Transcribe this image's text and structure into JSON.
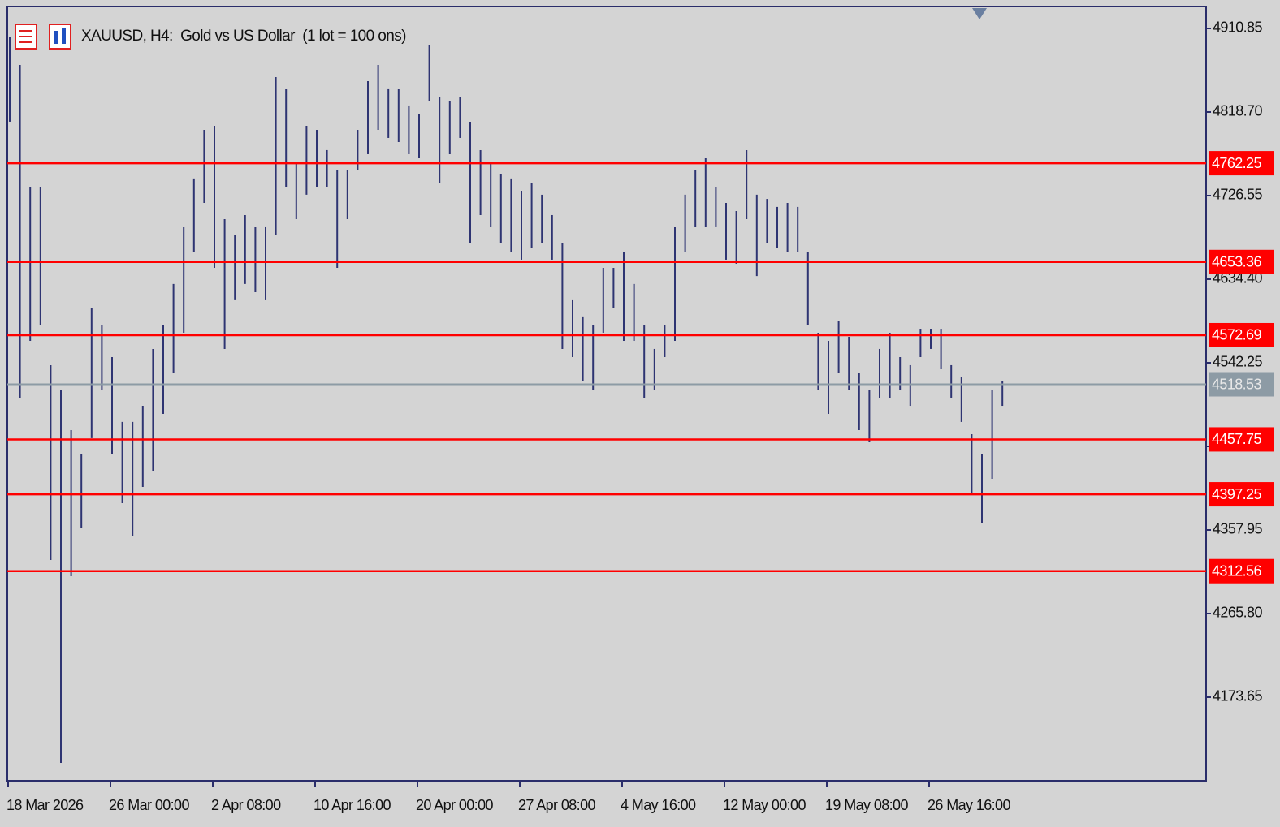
{
  "chart_data": {
    "type": "ohlc",
    "title": "XAUUSD, H4:  Gold vs US Dollar  (1 lot = 100 ons)",
    "categories": [
      "18 Mar 2026",
      null,
      null,
      null,
      null,
      null,
      null,
      null,
      null,
      null,
      "26 Mar 00:00",
      null,
      null,
      null,
      null,
      null,
      null,
      null,
      null,
      null,
      "2 Apr 08:00",
      null,
      null,
      null,
      null,
      null,
      null,
      null,
      null,
      null,
      "10 Apr 16:00",
      null,
      null,
      null,
      null,
      null,
      null,
      null,
      null,
      null,
      "20 Apr 00:00",
      null,
      null,
      null,
      null,
      null,
      null,
      null,
      null,
      null,
      "27 Apr 08:00",
      null,
      null,
      null,
      null,
      null,
      null,
      null,
      null,
      null,
      "4 May 16:00",
      null,
      null,
      null,
      null,
      null,
      null,
      null,
      null,
      null,
      "12 May 00:00",
      null,
      null,
      null,
      null,
      null,
      null,
      null,
      null,
      null,
      "19 May 08:00",
      null,
      null,
      null,
      null,
      null,
      null,
      null,
      null,
      null,
      "26 May 16:00",
      null,
      null,
      null,
      null,
      null,
      null,
      null
    ],
    "high": [
      4901.9,
      4870.6,
      4736.4,
      4736.4,
      4539.6,
      4512.7,
      4468.0,
      4441.2,
      4602.2,
      4584.3,
      4548.5,
      4477.0,
      4477.0,
      4494.8,
      4557.5,
      4584.3,
      4629.1,
      4691.7,
      4745.4,
      4799.0,
      4803.5,
      4700.6,
      4682.7,
      4705.1,
      4691.7,
      4691.7,
      4857.2,
      4843.8,
      4763.3,
      4803.5,
      4799.0,
      4776.7,
      4754.3,
      4754.3,
      4799.0,
      4852.7,
      4870.6,
      4843.8,
      4843.8,
      4825.9,
      4816.9,
      4893.0,
      4834.8,
      4830.4,
      4834.8,
      4808.0,
      4776.7,
      4763.3,
      4749.8,
      4745.4,
      4731.9,
      4740.9,
      4727.5,
      4705.1,
      4673.8,
      4611.2,
      4593.3,
      4584.3,
      4646.9,
      4646.9,
      4664.8,
      4629.1,
      4584.3,
      4557.5,
      4584.3,
      4691.7,
      4727.5,
      4754.3,
      4767.7,
      4736.4,
      4718.5,
      4709.6,
      4776.7,
      4727.5,
      4722.9,
      4714.1,
      4718.5,
      4714.1,
      4664.8,
      4575.4,
      4566.4,
      4588.8,
      4570.9,
      4530.6,
      4512.7,
      4557.5,
      4575.4,
      4548.5,
      4539.6,
      4579.8,
      4579.8,
      4579.8,
      4539.6,
      4526.2,
      4463.5,
      4441.2,
      4512.7,
      4521.7
    ],
    "low": [
      4808.0,
      4503.8,
      4566.4,
      4584.3,
      4324.9,
      4101.2,
      4306.9,
      4360.6,
      4459.1,
      4512.7,
      4441.2,
      4387.5,
      4351.7,
      4405.4,
      4423.3,
      4485.9,
      4530.6,
      4575.4,
      4664.8,
      4718.5,
      4646.9,
      4557.5,
      4611.2,
      4629.1,
      4620.1,
      4611.2,
      4682.7,
      4736.4,
      4700.6,
      4727.5,
      4736.4,
      4736.4,
      4646.9,
      4700.6,
      4754.3,
      4772.2,
      4799.0,
      4790.1,
      4785.6,
      4772.2,
      4767.7,
      4830.4,
      4740.9,
      4772.2,
      4790.1,
      4673.8,
      4705.1,
      4691.7,
      4673.8,
      4664.8,
      4655.9,
      4669.3,
      4673.8,
      4655.9,
      4557.5,
      4548.5,
      4521.7,
      4512.7,
      4575.4,
      4602.2,
      4566.4,
      4566.4,
      4503.8,
      4512.7,
      4548.5,
      4566.4,
      4664.8,
      4691.7,
      4691.7,
      4691.7,
      4655.9,
      4651.4,
      4700.6,
      4637.9,
      4673.8,
      4669.3,
      4664.8,
      4664.8,
      4584.3,
      4512.7,
      4485.9,
      4530.6,
      4512.7,
      4468.0,
      4454.6,
      4503.8,
      4503.8,
      4512.7,
      4494.8,
      4548.5,
      4557.5,
      4535.1,
      4503.8,
      4477.0,
      4396.4,
      4365.1,
      4414.3,
      4494.8
    ],
    "bar_color": "#2e3472",
    "ylim": [
      4081.5,
      4935.0
    ],
    "yticks": [
      {
        "value": 4910.85,
        "label": "4910.85"
      },
      {
        "value": 4818.7,
        "label": "4818.70"
      },
      {
        "value": 4726.55,
        "label": "4726.55"
      },
      {
        "value": 4634.4,
        "label": "4634.40"
      },
      {
        "value": 4542.25,
        "label": "4542.25"
      },
      {
        "value": 4450.1,
        "label": "4450.10"
      },
      {
        "value": 4357.95,
        "label": "4357.95"
      },
      {
        "value": 4265.8,
        "label": "4265.80"
      },
      {
        "value": 4173.65,
        "label": "4173.65"
      }
    ],
    "levels": [
      4762.25,
      4653.36,
      4572.69,
      4457.75,
      4397.25,
      4312.56
    ],
    "levels_color": "#ff0000",
    "current_price": 4518.53,
    "current_color": "#8d9ba5",
    "grid": false
  }
}
